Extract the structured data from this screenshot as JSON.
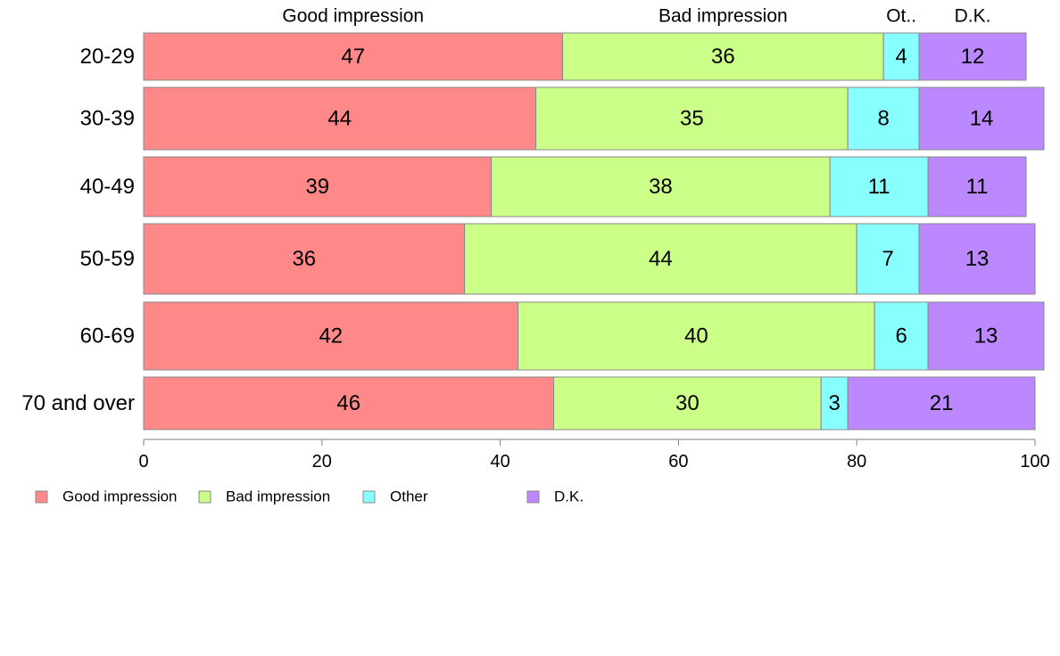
{
  "chart_data": {
    "type": "bar",
    "orientation": "horizontal",
    "stacked": true,
    "categories": [
      "20-29",
      "30-39",
      "40-49",
      "50-59",
      "60-69",
      "70 and over"
    ],
    "series": [
      {
        "name": "Good impression",
        "color": "#ff8888",
        "values": [
          47,
          44,
          39,
          36,
          42,
          46
        ]
      },
      {
        "name": "Bad impression",
        "color": "#ccff88",
        "values": [
          36,
          35,
          38,
          44,
          40,
          30
        ]
      },
      {
        "name": "Other",
        "color": "#88ffff",
        "values": [
          4,
          8,
          11,
          7,
          6,
          3
        ]
      },
      {
        "name": "D.K.",
        "color": "#bb88ff",
        "values": [
          12,
          14,
          11,
          13,
          13,
          21
        ]
      }
    ],
    "header_labels": [
      "Good impression",
      "Bad impression",
      "Ot..",
      "D.K."
    ],
    "xlim": [
      0,
      100
    ],
    "xticks": [
      "0",
      "20",
      "40",
      "60",
      "80",
      "100"
    ],
    "grid": false,
    "legend": "bottom-left"
  }
}
